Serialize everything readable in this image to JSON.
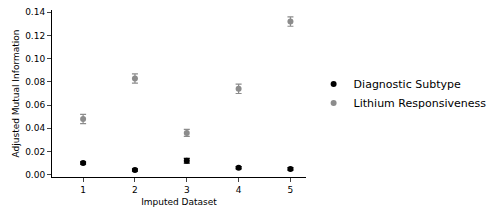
{
  "chart_data": {
    "type": "scatter",
    "x_label": "Imputed Dataset",
    "y_label": "Adjusted Mutual Information",
    "x": [
      1,
      2,
      3,
      4,
      5
    ],
    "series": [
      {
        "name": "Diagnostic Subtype",
        "color": "#000000",
        "marker": "circle",
        "values": [
          0.01,
          0.004,
          0.012,
          0.006,
          0.005
        ],
        "errors": [
          0.001,
          0.001,
          0.002,
          0.001,
          0.001
        ]
      },
      {
        "name": "Lithium Responsiveness",
        "color": "#8c8c8c",
        "marker": "circle",
        "values": [
          0.048,
          0.083,
          0.036,
          0.074,
          0.132
        ],
        "errors": [
          0.004,
          0.004,
          0.003,
          0.004,
          0.004
        ]
      }
    ],
    "xlim": [
      0.4,
      5.3
    ],
    "xticks": [
      1,
      2,
      3,
      4,
      5
    ],
    "ylim": [
      -0.002,
      0.142
    ],
    "yticks": [
      {
        "value": 0,
        "label": "0.00"
      },
      {
        "value": 0.02,
        "label": "0.02"
      },
      {
        "value": 0.04,
        "label": "0.04"
      },
      {
        "value": 0.06,
        "label": "0.06"
      },
      {
        "value": 0.08,
        "label": "0.08"
      },
      {
        "value": 0.1,
        "label": "0.10"
      },
      {
        "value": 0.12,
        "label": "0.12"
      },
      {
        "value": 0.14,
        "label": "0.14"
      }
    ],
    "grid": false,
    "legend": "right"
  }
}
